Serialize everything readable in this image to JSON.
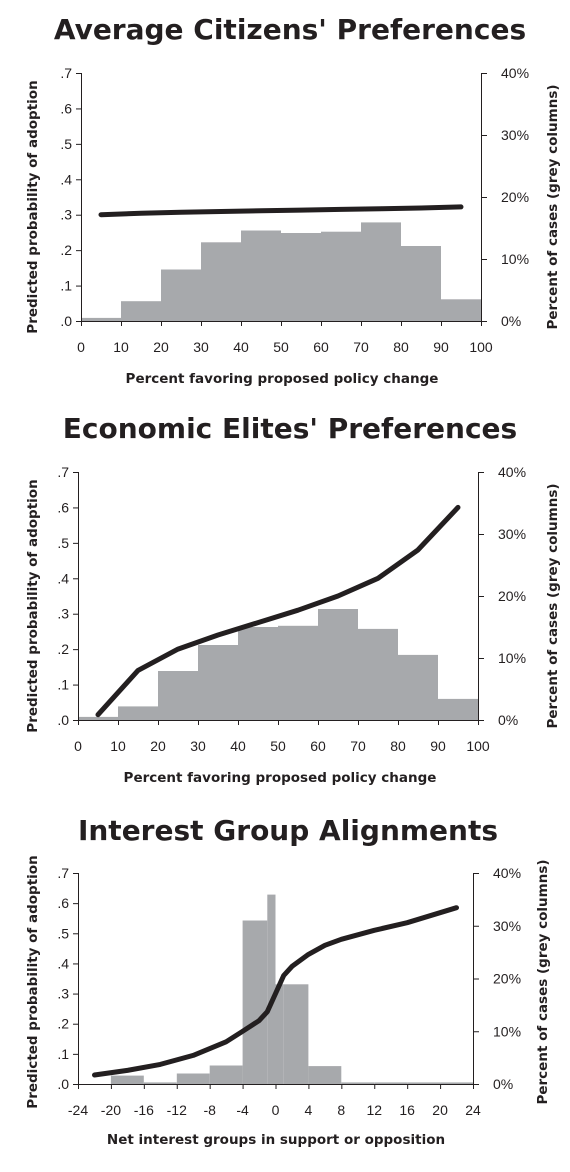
{
  "chart_data": [
    {
      "type": "bar+line",
      "title": "Average Citizens' Preferences",
      "xlabel": "Percent favoring proposed policy change",
      "ylabel": "Predicted probability of adoption",
      "y2label": "Percent of cases (grey columns)",
      "xlim": [
        0,
        100
      ],
      "ylim": [
        0,
        0.7
      ],
      "y2lim": [
        0,
        40
      ],
      "x_ticks": [
        "0",
        "10",
        "20",
        "30",
        "40",
        "50",
        "60",
        "70",
        "80",
        "90",
        "100"
      ],
      "y_ticks": [
        ".0",
        ".1",
        ".2",
        ".3",
        ".4",
        ".5",
        ".6",
        ".7"
      ],
      "y2_ticks": [
        "0%",
        "10%",
        "20%",
        "30%",
        "40%"
      ],
      "bars": {
        "name": "Percent of cases (grey columns)",
        "bin_edges": [
          0,
          10,
          20,
          30,
          40,
          50,
          60,
          70,
          80,
          90,
          100
        ],
        "values": [
          0.5,
          3.2,
          8.3,
          12.7,
          14.6,
          14.2,
          14.4,
          15.9,
          12.1,
          3.5
        ]
      },
      "line": {
        "name": "Predicted probability of adoption",
        "x": [
          5,
          15,
          25,
          35,
          45,
          55,
          65,
          75,
          85,
          95
        ],
        "y": [
          0.3,
          0.304,
          0.307,
          0.309,
          0.311,
          0.313,
          0.315,
          0.317,
          0.319,
          0.322
        ]
      },
      "grid": false
    },
    {
      "type": "bar+line",
      "title": "Economic Elites' Preferences",
      "xlabel": "Percent favoring proposed policy change",
      "ylabel": "Predicted probability of adoption",
      "y2label": "Percent of cases (grey columns)",
      "xlim": [
        0,
        100
      ],
      "ylim": [
        0,
        0.7
      ],
      "y2lim": [
        0,
        40
      ],
      "x_ticks": [
        "0",
        "10",
        "20",
        "30",
        "40",
        "50",
        "60",
        "70",
        "80",
        "90",
        "100"
      ],
      "y_ticks": [
        ".0",
        ".1",
        ".2",
        ".3",
        ".4",
        ".5",
        ".6",
        ".7"
      ],
      "y2_ticks": [
        "0%",
        "10%",
        "20%",
        "30%",
        "40%"
      ],
      "bars": {
        "name": "Percent of cases (grey columns)",
        "bin_edges": [
          0,
          10,
          20,
          30,
          40,
          50,
          60,
          70,
          80,
          90,
          100
        ],
        "values": [
          0.5,
          2.2,
          7.9,
          12.1,
          15.0,
          15.2,
          17.9,
          14.7,
          10.5,
          3.4
        ]
      },
      "line": {
        "name": "Predicted probability of adoption",
        "x": [
          5,
          15,
          25,
          35,
          45,
          55,
          65,
          75,
          85,
          95
        ],
        "y": [
          0.015,
          0.14,
          0.2,
          0.24,
          0.275,
          0.31,
          0.35,
          0.4,
          0.48,
          0.6
        ]
      },
      "grid": false
    },
    {
      "type": "bar+line",
      "title": "Interest Group Alignments",
      "xlabel": "Net interest groups in support or opposition",
      "ylabel": "Predicted probability of adoption",
      "y2label": "Percent of cases (grey columns)",
      "xlim": [
        -24,
        24
      ],
      "ylim": [
        0,
        0.7
      ],
      "y2lim": [
        0,
        40
      ],
      "x_ticks": [
        "-24",
        "-20",
        "-16",
        "-12",
        "-8",
        "-4",
        "0",
        "4",
        "8",
        "12",
        "16",
        "20",
        "24"
      ],
      "y_ticks": [
        ".0",
        ".1",
        ".2",
        ".3",
        ".4",
        ".5",
        ".6",
        ".7"
      ],
      "y2_ticks": [
        "0%",
        "10%",
        "20%",
        "30%",
        "40%"
      ],
      "bars": {
        "name": "Percent of cases (grey columns)",
        "bin_edges": [
          -24,
          -20,
          -16,
          -12,
          -8,
          -4,
          -1,
          0,
          1,
          4,
          8,
          12,
          16,
          20,
          24
        ],
        "values": [
          0,
          1.6,
          0.3,
          2.0,
          3.5,
          31.0,
          35.9,
          18.9,
          18.9,
          3.4,
          0.3,
          0.3,
          0.3,
          0.3
        ]
      },
      "line": {
        "name": "Predicted probability of adoption",
        "x": [
          -22,
          -18,
          -14,
          -10,
          -6,
          -4,
          -2,
          -1,
          0,
          1,
          2,
          4,
          6,
          8,
          12,
          16,
          22
        ],
        "y": [
          0.03,
          0.045,
          0.065,
          0.095,
          0.14,
          0.175,
          0.21,
          0.24,
          0.3,
          0.36,
          0.39,
          0.43,
          0.46,
          0.48,
          0.51,
          0.535,
          0.585
        ]
      },
      "grid": false
    }
  ]
}
